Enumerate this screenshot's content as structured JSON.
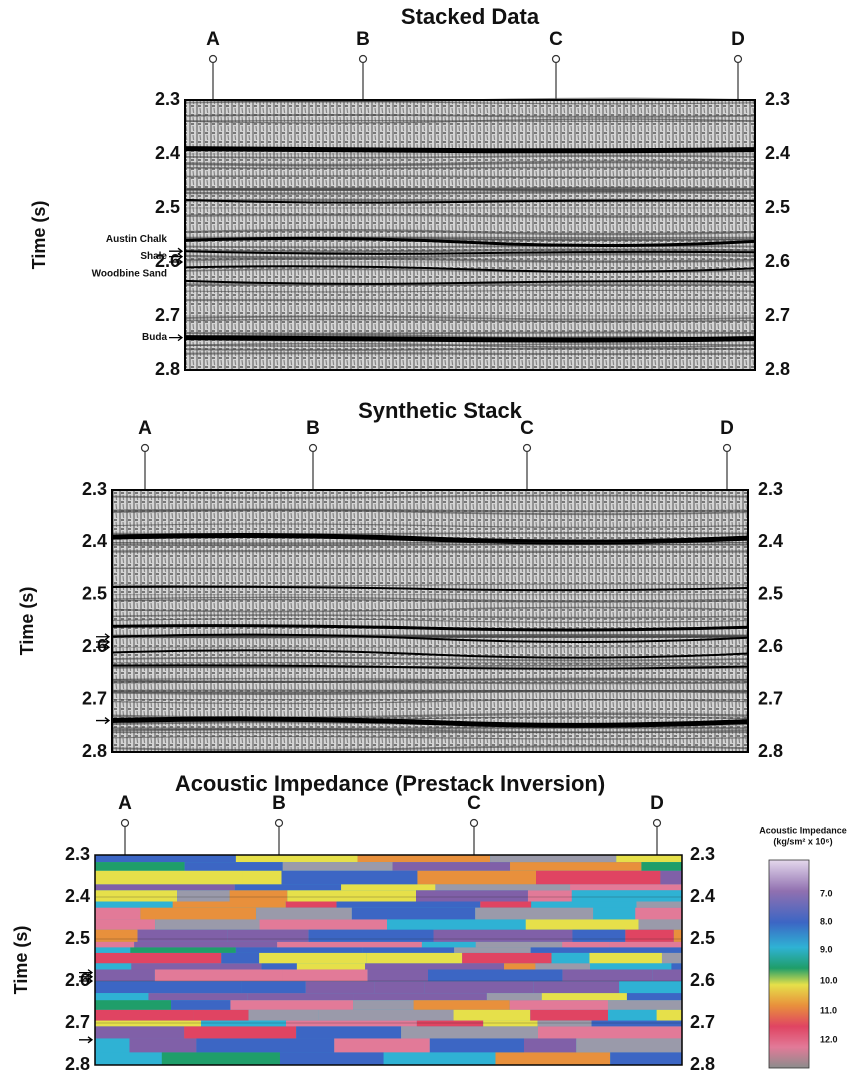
{
  "panels": [
    {
      "title": "Stacked Data",
      "wells": [
        "A",
        "B",
        "C",
        "D"
      ],
      "yticks": [
        "2.3",
        "2.4",
        "2.5",
        "2.6",
        "2.7",
        "2.8"
      ],
      "ylabel": "Time (s)",
      "horizons": [
        "Austin Chalk",
        "Shale",
        "Woodbine Sand",
        "Buda"
      ]
    },
    {
      "title": "Synthetic Stack",
      "wells": [
        "A",
        "B",
        "C",
        "D"
      ],
      "yticks": [
        "2.3",
        "2.4",
        "2.5",
        "2.6",
        "2.7",
        "2.8"
      ],
      "ylabel": "Time (s)"
    },
    {
      "title": "Acoustic Impedance (Prestack Inversion)",
      "wells": [
        "A",
        "B",
        "C",
        "D"
      ],
      "yticks": [
        "2.3",
        "2.4",
        "2.5",
        "2.6",
        "2.7",
        "2.8"
      ],
      "ylabel": "Time (s)"
    }
  ],
  "colorbar": {
    "title": "Acoustic Impedance",
    "units": "(kg/sm² x 10⁶)",
    "ticks": [
      "7.0",
      "8.0",
      "9.0",
      "10.0",
      "11.0",
      "12.0"
    ]
  }
}
